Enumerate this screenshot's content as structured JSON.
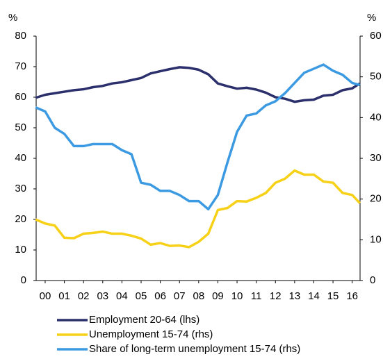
{
  "chart_data": {
    "type": "line",
    "ylabel": "%",
    "y2label": "%",
    "x": [
      -0.5,
      0,
      0.5,
      1,
      1.5,
      2,
      2.5,
      3,
      3.5,
      4,
      4.5,
      5,
      5.5,
      6,
      6.5,
      7,
      7.5,
      8,
      8.5,
      9,
      9.5,
      10,
      10.5,
      11,
      11.5,
      12,
      12.5,
      13,
      13.5,
      14,
      14.5,
      15,
      15.5,
      16,
      16.4
    ],
    "xlim": [
      -0.47,
      16.41
    ],
    "xticks": [
      {
        "value": 0,
        "label": "00"
      },
      {
        "value": 1,
        "label": "01"
      },
      {
        "value": 2,
        "label": "02"
      },
      {
        "value": 3,
        "label": "03"
      },
      {
        "value": 4,
        "label": "04"
      },
      {
        "value": 5,
        "label": "05"
      },
      {
        "value": 6,
        "label": "06"
      },
      {
        "value": 7,
        "label": "07"
      },
      {
        "value": 8,
        "label": "08"
      },
      {
        "value": 9,
        "label": "09"
      },
      {
        "value": 10,
        "label": "10"
      },
      {
        "value": 11,
        "label": "11"
      },
      {
        "value": 12,
        "label": "12"
      },
      {
        "value": 13,
        "label": "13"
      },
      {
        "value": 14,
        "label": "14"
      },
      {
        "value": 15,
        "label": "15"
      },
      {
        "value": 16,
        "label": "16"
      }
    ],
    "ylim": [
      0,
      80
    ],
    "yticks": [
      0,
      10,
      20,
      30,
      40,
      50,
      60,
      70,
      80
    ],
    "y2lim": [
      0,
      60
    ],
    "y2ticks": [
      0,
      10,
      20,
      30,
      40,
      50,
      60
    ],
    "legend": "bottom",
    "series": [
      {
        "name": "Employment 20-64 (lhs)",
        "color": "#2b2f6b",
        "values": [
          59.8,
          60.8,
          61.3,
          61.8,
          62.3,
          62.6,
          63.3,
          63.7,
          64.5,
          64.9,
          65.6,
          66.3,
          67.8,
          68.5,
          69.2,
          69.8,
          69.6,
          69.0,
          67.5,
          64.5,
          63.6,
          62.8,
          63.1,
          62.5,
          61.5,
          60.0,
          59.5,
          58.5,
          59.0,
          59.2,
          60.5,
          60.8,
          62.3,
          62.9,
          64.5
        ]
      },
      {
        "name": "Unemployment 15-74 (rhs)",
        "color": "#f7d117",
        "axis": "y2",
        "values": [
          15,
          14,
          13.5,
          10.5,
          10.4,
          11.5,
          11.7,
          12.0,
          11.5,
          11.5,
          11.0,
          10.3,
          8.8,
          9.2,
          8.5,
          8.6,
          8.2,
          9.5,
          11.5,
          17.3,
          17.8,
          19.5,
          19.4,
          20.3,
          21.5,
          24,
          25,
          27,
          26,
          26,
          24.3,
          24,
          21.5,
          21,
          19
        ]
      },
      {
        "name": "Share of long-term unemployment 15-74 (rhs)",
        "color": "#3b9ae1",
        "axis": "y2",
        "values": [
          42.5,
          41.5,
          37.5,
          36,
          33,
          33,
          33.5,
          33.5,
          33.5,
          32,
          31,
          24,
          23.5,
          22,
          22,
          21,
          19.5,
          19.5,
          17.5,
          21,
          29,
          36.5,
          40.5,
          41,
          43,
          44,
          46,
          48.5,
          51,
          52,
          53,
          51.5,
          50.5,
          48.5,
          48
        ]
      }
    ]
  }
}
